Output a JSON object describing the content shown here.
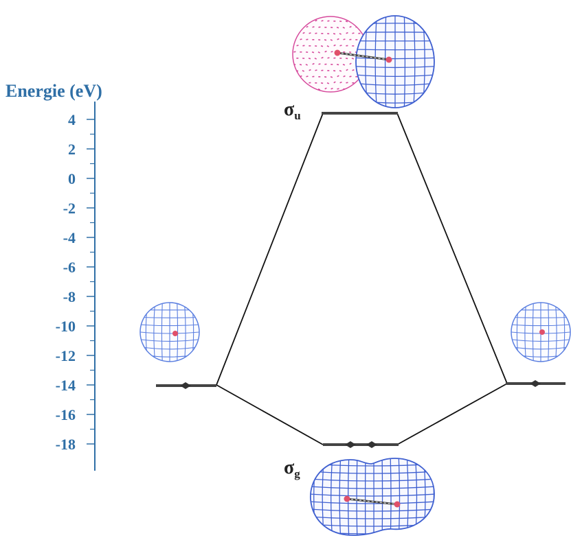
{
  "axis": {
    "title": "Energie (eV)",
    "tick_labels": [
      "4",
      "2",
      "0",
      "-2",
      "-4",
      "-6",
      "-8",
      "-10",
      "-12",
      "-14",
      "-16",
      "-18"
    ]
  },
  "orbitals": {
    "sigma_u": {
      "symbol": "σ",
      "subscript": "u"
    },
    "sigma_g": {
      "symbol": "σ",
      "subscript": "g"
    }
  },
  "colors": {
    "axis": "#2f6fa6",
    "orbital_mesh": "#3e5fd0",
    "orbital_mesh_light": "#5b7fe0",
    "orbital_negative": "#d64a9c",
    "nucleus": "#e0506a",
    "level": "#444444"
  },
  "chart_data": {
    "type": "diagram",
    "y_axis": {
      "label": "Energie (eV)",
      "range": [
        -18,
        4
      ],
      "ticks": [
        4,
        2,
        0,
        -2,
        -4,
        -6,
        -8,
        -10,
        -12,
        -14,
        -16,
        -18
      ]
    },
    "levels": [
      {
        "id": "atom-left",
        "energy": -12.8,
        "electrons": 1
      },
      {
        "id": "sigma_g",
        "label": "σg",
        "energy": -16.8,
        "electrons": 2
      },
      {
        "id": "sigma_u",
        "label": "σu",
        "energy": 4.3,
        "electrons": 0
      },
      {
        "id": "atom-right",
        "energy": -12.8,
        "electrons": 1
      }
    ]
  }
}
